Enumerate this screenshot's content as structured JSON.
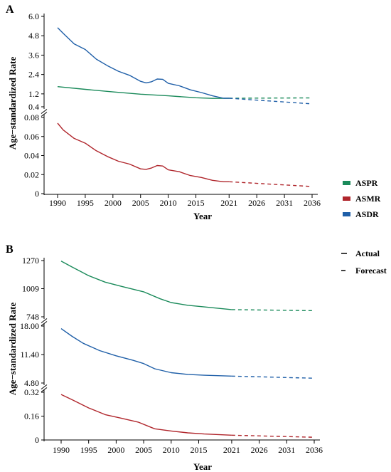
{
  "colors": {
    "ASPR": "#1a8a5a",
    "ASMR": "#b0262c",
    "ASDR": "#1f5fa8"
  },
  "legend": {
    "items": [
      {
        "label": "ASPR",
        "color": "#1a8a5a"
      },
      {
        "label": "ASMR",
        "color": "#b0262c"
      },
      {
        "label": "ASDR",
        "color": "#1f5fa8"
      }
    ],
    "line_types": [
      {
        "label": "Actual",
        "style": "solid"
      },
      {
        "label": "Forecast",
        "style": "dashed"
      }
    ]
  },
  "chart_data": [
    {
      "panel": "A",
      "type": "line",
      "ylabel": "Age−standardized Rate",
      "xlabel": "Year",
      "x_ticks": [
        "1990",
        "1995",
        "2000",
        "2005",
        "2010",
        "2015",
        "2021",
        "2026",
        "2031",
        "2036"
      ],
      "segments": [
        {
          "ylim": [
            0.4,
            6.0
          ],
          "y_ticks": [
            "0.4",
            "1.2",
            "2.4",
            "3.6",
            "4.8",
            "6.0"
          ]
        },
        {
          "ylim": [
            0,
            0.08
          ],
          "y_ticks": [
            "0",
            "0.02",
            "0.04",
            "0.06",
            "0.08"
          ]
        }
      ],
      "series": [
        {
          "name": "ASPR",
          "segment": 0,
          "actual": [
            [
              1990,
              1.65
            ],
            [
              1995,
              1.48
            ],
            [
              2000,
              1.32
            ],
            [
              2005,
              1.18
            ],
            [
              2010,
              1.08
            ],
            [
              2015,
              0.96
            ],
            [
              2018,
              0.92
            ],
            [
              2021,
              0.93
            ]
          ],
          "forecast": [
            [
              2021,
              0.93
            ],
            [
              2036,
              0.95
            ]
          ]
        },
        {
          "name": "ASDR",
          "segment": 0,
          "actual": [
            [
              1990,
              5.3
            ],
            [
              1991,
              4.95
            ],
            [
              1993,
              4.3
            ],
            [
              1995,
              3.95
            ],
            [
              1997,
              3.35
            ],
            [
              1999,
              2.95
            ],
            [
              2001,
              2.6
            ],
            [
              2003,
              2.35
            ],
            [
              2005,
              1.98
            ],
            [
              2006,
              1.88
            ],
            [
              2007,
              1.95
            ],
            [
              2008,
              2.12
            ],
            [
              2009,
              2.1
            ],
            [
              2010,
              1.85
            ],
            [
              2012,
              1.7
            ],
            [
              2014,
              1.45
            ],
            [
              2016,
              1.28
            ],
            [
              2018,
              1.08
            ],
            [
              2020,
              0.93
            ],
            [
              2021,
              0.93
            ]
          ],
          "forecast": [
            [
              2021,
              0.93
            ],
            [
              2036,
              0.58
            ]
          ]
        },
        {
          "name": "ASMR",
          "segment": 1,
          "actual": [
            [
              1990,
              0.074
            ],
            [
              1991,
              0.067
            ],
            [
              1993,
              0.058
            ],
            [
              1995,
              0.053
            ],
            [
              1997,
              0.045
            ],
            [
              1999,
              0.039
            ],
            [
              2001,
              0.034
            ],
            [
              2003,
              0.031
            ],
            [
              2005,
              0.026
            ],
            [
              2006,
              0.0255
            ],
            [
              2007,
              0.027
            ],
            [
              2008,
              0.0295
            ],
            [
              2009,
              0.029
            ],
            [
              2010,
              0.025
            ],
            [
              2012,
              0.023
            ],
            [
              2014,
              0.019
            ],
            [
              2016,
              0.017
            ],
            [
              2018,
              0.014
            ],
            [
              2020,
              0.0125
            ],
            [
              2021,
              0.0125
            ]
          ],
          "forecast": [
            [
              2021,
              0.0125
            ],
            [
              2036,
              0.0075
            ]
          ]
        }
      ]
    },
    {
      "panel": "B",
      "type": "line",
      "ylabel": "Age−standardized Rate",
      "xlabel": "Year",
      "x_ticks": [
        "1990",
        "1995",
        "2000",
        "2005",
        "2010",
        "2015",
        "2021",
        "2026",
        "2031",
        "2036"
      ],
      "segments": [
        {
          "ylim": [
            748,
            1270
          ],
          "y_ticks": [
            "748",
            "1009",
            "1270"
          ]
        },
        {
          "ylim": [
            4.8,
            18.0
          ],
          "y_ticks": [
            "4.80",
            "11.40",
            "18.00"
          ]
        },
        {
          "ylim": [
            0,
            0.32
          ],
          "y_ticks": [
            "0",
            "0.16",
            "0.32"
          ]
        }
      ],
      "series": [
        {
          "name": "ASPR",
          "segment": 0,
          "actual": [
            [
              1990,
              1265
            ],
            [
              1992,
              1210
            ],
            [
              1995,
              1130
            ],
            [
              1998,
              1070
            ],
            [
              2001,
              1030
            ],
            [
              2005,
              980
            ],
            [
              2008,
              915
            ],
            [
              2010,
              880
            ],
            [
              2013,
              855
            ],
            [
              2016,
              840
            ],
            [
              2021,
              815
            ]
          ],
          "forecast": [
            [
              2021,
              815
            ],
            [
              2036,
              805
            ]
          ]
        },
        {
          "name": "ASDR",
          "segment": 1,
          "actual": [
            [
              1990,
              17.4
            ],
            [
              1992,
              15.6
            ],
            [
              1994,
              14.0
            ],
            [
              1997,
              12.3
            ],
            [
              2000,
              11.1
            ],
            [
              2003,
              10.1
            ],
            [
              2005,
              9.3
            ],
            [
              2007,
              8.1
            ],
            [
              2010,
              7.2
            ],
            [
              2013,
              6.8
            ],
            [
              2016,
              6.6
            ],
            [
              2021,
              6.4
            ]
          ],
          "forecast": [
            [
              2021,
              6.4
            ],
            [
              2036,
              5.9
            ]
          ]
        },
        {
          "name": "ASMR",
          "segment": 2,
          "actual": [
            [
              1990,
              0.305
            ],
            [
              1992,
              0.27
            ],
            [
              1995,
              0.215
            ],
            [
              1998,
              0.17
            ],
            [
              2001,
              0.145
            ],
            [
              2004,
              0.12
            ],
            [
              2006,
              0.09
            ],
            [
              2007,
              0.075
            ],
            [
              2010,
              0.06
            ],
            [
              2013,
              0.048
            ],
            [
              2016,
              0.04
            ],
            [
              2021,
              0.032
            ]
          ],
          "forecast": [
            [
              2021,
              0.032
            ],
            [
              2036,
              0.018
            ]
          ]
        }
      ]
    }
  ]
}
